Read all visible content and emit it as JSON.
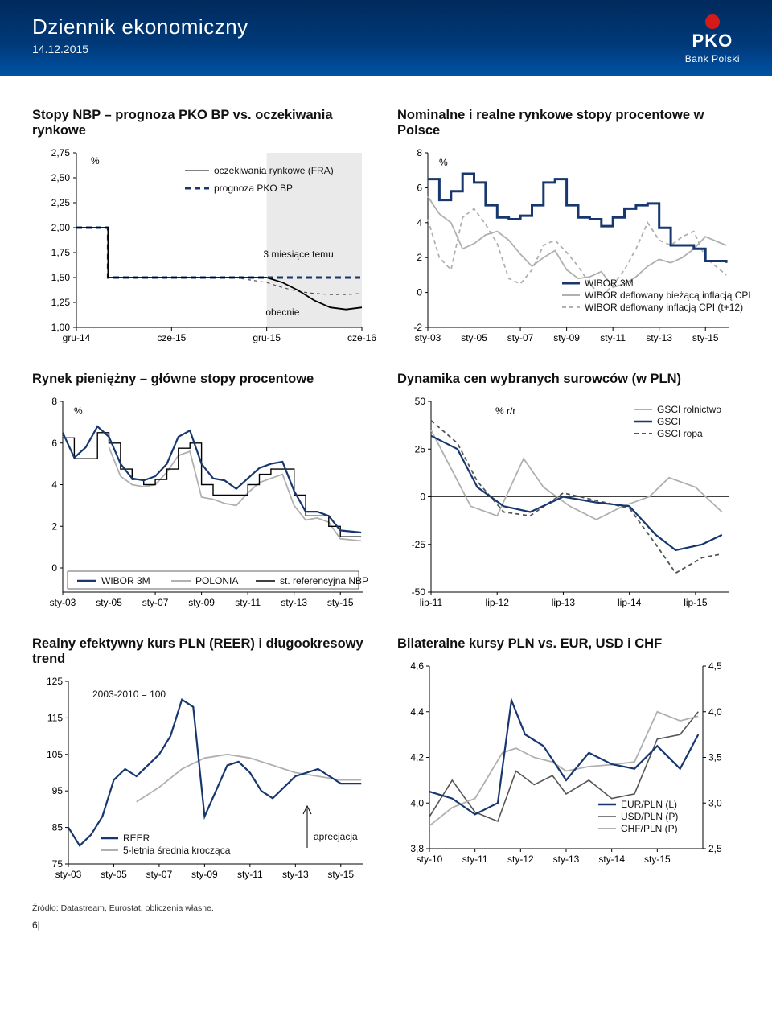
{
  "header": {
    "title": "Dziennik ekonomiczny",
    "date": "14.12.2015",
    "logo_top_color": "#d51a1a",
    "logo_text1": "PKO",
    "logo_text2": "Bank Polski"
  },
  "colors": {
    "blue": "#17376e",
    "gray": "#b0b0b0",
    "darkgray": "#555555",
    "black": "#000000"
  },
  "chart1": {
    "title": "Stopy NBP – prognoza PKO BP vs. oczekiwania rynkowe",
    "unit": "%",
    "legend": {
      "fra": "oczekiwania rynkowe (FRA)",
      "pko": "prognoza PKO BP",
      "ago": "3 miesiące temu",
      "now": "obecnie"
    },
    "yticks": [
      "1,00",
      "1,25",
      "1,50",
      "1,75",
      "2,00",
      "2,25",
      "2,50",
      "2,75"
    ],
    "yvals": [
      1.0,
      1.25,
      1.5,
      1.75,
      2.0,
      2.25,
      2.5,
      2.75
    ],
    "xticks": [
      "gru-14",
      "cze-15",
      "gru-15",
      "cze-16"
    ],
    "xvals": [
      0,
      6,
      12,
      18
    ],
    "fra_now": [
      [
        0,
        2.0
      ],
      [
        2,
        2.0
      ],
      [
        2,
        1.5
      ],
      [
        12,
        1.5
      ],
      [
        13,
        1.45
      ],
      [
        14,
        1.37
      ],
      [
        15,
        1.27
      ],
      [
        16,
        1.2
      ],
      [
        17,
        1.18
      ],
      [
        18,
        1.2
      ]
    ],
    "fra_ago": [
      [
        10,
        1.5
      ],
      [
        12,
        1.45
      ],
      [
        13,
        1.4
      ],
      [
        14,
        1.36
      ],
      [
        15,
        1.34
      ],
      [
        16,
        1.33
      ],
      [
        17,
        1.33
      ],
      [
        18,
        1.34
      ]
    ],
    "pko": [
      [
        0,
        2.0
      ],
      [
        2,
        2.0
      ],
      [
        2,
        1.5
      ],
      [
        18,
        1.5
      ]
    ],
    "shade_x": [
      12,
      18
    ]
  },
  "chart2": {
    "title": "Nominalne i realne rynkowe stopy procentowe w Polsce",
    "unit": "%",
    "yticks": [
      "-2",
      "0",
      "2",
      "4",
      "6",
      "8"
    ],
    "yvals": [
      -2,
      0,
      2,
      4,
      6,
      8
    ],
    "xticks": [
      "sty-03",
      "sty-05",
      "sty-07",
      "sty-09",
      "sty-11",
      "sty-13",
      "sty-15"
    ],
    "xvals": [
      2003,
      2005,
      2007,
      2009,
      2011,
      2013,
      2015
    ],
    "legend": {
      "a": "WIBOR 3M",
      "b": "WIBOR deflowany bieżącą inflacją CPI",
      "c": "WIBOR deflowany inflacją CPI (t+12)"
    },
    "wibor": [
      [
        2003,
        6.5
      ],
      [
        2003.5,
        5.3
      ],
      [
        2004,
        5.8
      ],
      [
        2004.5,
        6.8
      ],
      [
        2005,
        6.3
      ],
      [
        2005.5,
        5.0
      ],
      [
        2006,
        4.3
      ],
      [
        2006.5,
        4.2
      ],
      [
        2007,
        4.4
      ],
      [
        2007.5,
        5.0
      ],
      [
        2008,
        6.3
      ],
      [
        2008.5,
        6.5
      ],
      [
        2009,
        5.0
      ],
      [
        2009.5,
        4.3
      ],
      [
        2010,
        4.2
      ],
      [
        2010.5,
        3.8
      ],
      [
        2011,
        4.3
      ],
      [
        2011.5,
        4.8
      ],
      [
        2012,
        5.0
      ],
      [
        2012.5,
        5.1
      ],
      [
        2013,
        3.7
      ],
      [
        2013.5,
        2.7
      ],
      [
        2014,
        2.7
      ],
      [
        2014.5,
        2.5
      ],
      [
        2015,
        1.8
      ],
      [
        2015.9,
        1.7
      ]
    ],
    "real_cur": [
      [
        2003,
        5.5
      ],
      [
        2003.5,
        4.5
      ],
      [
        2004,
        4.0
      ],
      [
        2004.5,
        2.5
      ],
      [
        2005,
        2.8
      ],
      [
        2005.5,
        3.3
      ],
      [
        2006,
        3.5
      ],
      [
        2006.5,
        3.0
      ],
      [
        2007,
        2.2
      ],
      [
        2007.5,
        1.5
      ],
      [
        2008,
        2.0
      ],
      [
        2008.5,
        2.4
      ],
      [
        2009,
        1.3
      ],
      [
        2009.5,
        0.8
      ],
      [
        2010,
        0.9
      ],
      [
        2010.5,
        1.2
      ],
      [
        2011,
        0.3
      ],
      [
        2011.5,
        0.5
      ],
      [
        2012,
        0.9
      ],
      [
        2012.5,
        1.5
      ],
      [
        2013,
        1.9
      ],
      [
        2013.5,
        1.7
      ],
      [
        2014,
        2.0
      ],
      [
        2014.5,
        2.5
      ],
      [
        2015,
        3.2
      ],
      [
        2015.9,
        2.7
      ]
    ],
    "real_fwd": [
      [
        2003,
        4.2
      ],
      [
        2003.5,
        2.0
      ],
      [
        2004,
        1.3
      ],
      [
        2004.5,
        4.3
      ],
      [
        2005,
        4.8
      ],
      [
        2005.5,
        3.9
      ],
      [
        2006,
        2.8
      ],
      [
        2006.5,
        0.8
      ],
      [
        2007,
        0.5
      ],
      [
        2007.5,
        1.3
      ],
      [
        2008,
        2.7
      ],
      [
        2008.5,
        3.0
      ],
      [
        2009,
        2.3
      ],
      [
        2009.5,
        1.5
      ],
      [
        2010,
        0.5
      ],
      [
        2010.5,
        -0.2
      ],
      [
        2011,
        0.4
      ],
      [
        2011.5,
        1.3
      ],
      [
        2012,
        2.5
      ],
      [
        2012.5,
        4.0
      ],
      [
        2013,
        3.0
      ],
      [
        2013.5,
        2.7
      ],
      [
        2014,
        3.2
      ],
      [
        2014.5,
        3.5
      ],
      [
        2015,
        2.0
      ],
      [
        2015.9,
        1.0
      ]
    ]
  },
  "chart3": {
    "title": "Rynek pieniężny – główne stopy procentowe",
    "unit": "%",
    "yticks": [
      "0",
      "2",
      "4",
      "6",
      "8"
    ],
    "yvals": [
      0,
      2,
      4,
      6,
      8
    ],
    "xticks": [
      "sty-03",
      "sty-05",
      "sty-07",
      "sty-09",
      "sty-11",
      "sty-13",
      "sty-15"
    ],
    "xvals": [
      2003,
      2005,
      2007,
      2009,
      2011,
      2013,
      2015
    ],
    "legend": {
      "a": "WIBOR 3M",
      "b": "POLONIA",
      "c": "st. referencyjna NBP"
    },
    "wibor": [
      [
        2003,
        6.5
      ],
      [
        2003.5,
        5.3
      ],
      [
        2004,
        5.8
      ],
      [
        2004.5,
        6.8
      ],
      [
        2005,
        6.3
      ],
      [
        2005.5,
        5.0
      ],
      [
        2006,
        4.3
      ],
      [
        2006.5,
        4.2
      ],
      [
        2007,
        4.4
      ],
      [
        2007.5,
        5.0
      ],
      [
        2008,
        6.3
      ],
      [
        2008.5,
        6.6
      ],
      [
        2009,
        5.0
      ],
      [
        2009.5,
        4.3
      ],
      [
        2010,
        4.2
      ],
      [
        2010.5,
        3.8
      ],
      [
        2011,
        4.3
      ],
      [
        2011.5,
        4.8
      ],
      [
        2012,
        5.0
      ],
      [
        2012.5,
        5.1
      ],
      [
        2013,
        3.7
      ],
      [
        2013.5,
        2.7
      ],
      [
        2014,
        2.7
      ],
      [
        2014.5,
        2.5
      ],
      [
        2015,
        1.8
      ],
      [
        2015.9,
        1.7
      ]
    ],
    "polonia": [
      [
        2005,
        5.8
      ],
      [
        2005.5,
        4.4
      ],
      [
        2006,
        4.0
      ],
      [
        2006.5,
        3.9
      ],
      [
        2007,
        4.0
      ],
      [
        2007.5,
        4.6
      ],
      [
        2008,
        5.4
      ],
      [
        2008.5,
        5.6
      ],
      [
        2009,
        3.4
      ],
      [
        2009.5,
        3.3
      ],
      [
        2010,
        3.1
      ],
      [
        2010.5,
        3.0
      ],
      [
        2011,
        3.6
      ],
      [
        2011.5,
        4.1
      ],
      [
        2012,
        4.3
      ],
      [
        2012.5,
        4.5
      ],
      [
        2013,
        3.0
      ],
      [
        2013.5,
        2.3
      ],
      [
        2014,
        2.4
      ],
      [
        2014.5,
        2.2
      ],
      [
        2015,
        1.4
      ],
      [
        2015.9,
        1.3
      ]
    ],
    "nbp": [
      [
        2003,
        6.25
      ],
      [
        2003.5,
        5.25
      ],
      [
        2004,
        5.25
      ],
      [
        2004.5,
        6.5
      ],
      [
        2005,
        6.0
      ],
      [
        2005.5,
        4.75
      ],
      [
        2006,
        4.25
      ],
      [
        2006.5,
        4.0
      ],
      [
        2007,
        4.25
      ],
      [
        2007.5,
        4.75
      ],
      [
        2008,
        5.75
      ],
      [
        2008.5,
        6.0
      ],
      [
        2009,
        4.0
      ],
      [
        2009.5,
        3.5
      ],
      [
        2010,
        3.5
      ],
      [
        2010.5,
        3.5
      ],
      [
        2011,
        4.0
      ],
      [
        2011.5,
        4.5
      ],
      [
        2012,
        4.75
      ],
      [
        2012.5,
        4.75
      ],
      [
        2013,
        3.5
      ],
      [
        2013.5,
        2.5
      ],
      [
        2014,
        2.5
      ],
      [
        2014.5,
        2.0
      ],
      [
        2015,
        1.5
      ],
      [
        2015.9,
        1.5
      ]
    ]
  },
  "chart4": {
    "title": "Dynamika cen wybranych surowców (w PLN)",
    "unit": "% r/r",
    "yticks": [
      "-50",
      "-25",
      "0",
      "25",
      "50"
    ],
    "yvals": [
      -50,
      -25,
      0,
      25,
      50
    ],
    "xticks": [
      "lip-11",
      "lip-12",
      "lip-13",
      "lip-14",
      "lip-15"
    ],
    "xvals": [
      2011.5,
      2012.5,
      2013.5,
      2014.5,
      2015.5
    ],
    "legend": {
      "a": "GSCI rolnictwo",
      "b": "GSCI",
      "c": "GSCI ropa"
    },
    "agri": [
      [
        2011.5,
        35
      ],
      [
        2011.8,
        15
      ],
      [
        2012.1,
        -5
      ],
      [
        2012.5,
        -10
      ],
      [
        2012.9,
        20
      ],
      [
        2013.2,
        5
      ],
      [
        2013.6,
        -5
      ],
      [
        2014.0,
        -12
      ],
      [
        2014.4,
        -5
      ],
      [
        2014.8,
        0
      ],
      [
        2015.1,
        10
      ],
      [
        2015.5,
        5
      ],
      [
        2015.9,
        -8
      ]
    ],
    "gsci": [
      [
        2011.5,
        32
      ],
      [
        2011.9,
        25
      ],
      [
        2012.2,
        5
      ],
      [
        2012.6,
        -5
      ],
      [
        2013.0,
        -8
      ],
      [
        2013.5,
        0
      ],
      [
        2014.0,
        -3
      ],
      [
        2014.5,
        -5
      ],
      [
        2014.9,
        -20
      ],
      [
        2015.2,
        -28
      ],
      [
        2015.6,
        -25
      ],
      [
        2015.9,
        -20
      ]
    ],
    "oil": [
      [
        2011.5,
        40
      ],
      [
        2011.9,
        28
      ],
      [
        2012.2,
        8
      ],
      [
        2012.6,
        -8
      ],
      [
        2013.0,
        -10
      ],
      [
        2013.5,
        2
      ],
      [
        2014.0,
        -2
      ],
      [
        2014.5,
        -6
      ],
      [
        2014.9,
        -25
      ],
      [
        2015.2,
        -40
      ],
      [
        2015.6,
        -32
      ],
      [
        2015.9,
        -30
      ]
    ]
  },
  "chart5": {
    "title": "Realny efektywny kurs PLN (REER) i długookresowy trend",
    "note": "2003-2010 = 100",
    "yticks": [
      "75",
      "85",
      "95",
      "105",
      "115",
      "125"
    ],
    "yvals": [
      75,
      85,
      95,
      105,
      115,
      125
    ],
    "xticks": [
      "sty-03",
      "sty-05",
      "sty-07",
      "sty-09",
      "sty-11",
      "sty-13",
      "sty-15"
    ],
    "xvals": [
      2003,
      2005,
      2007,
      2009,
      2011,
      2013,
      2015
    ],
    "legend": {
      "a": "REER",
      "b": "5-letnia średnia krocząca",
      "c": "aprecjacja"
    },
    "reer": [
      [
        2003,
        85
      ],
      [
        2003.5,
        80
      ],
      [
        2004,
        83
      ],
      [
        2004.5,
        88
      ],
      [
        2005,
        98
      ],
      [
        2005.5,
        101
      ],
      [
        2006,
        99
      ],
      [
        2006.5,
        102
      ],
      [
        2007,
        105
      ],
      [
        2007.5,
        110
      ],
      [
        2008,
        120
      ],
      [
        2008.5,
        118
      ],
      [
        2009,
        88
      ],
      [
        2009.5,
        95
      ],
      [
        2010,
        102
      ],
      [
        2010.5,
        103
      ],
      [
        2011,
        100
      ],
      [
        2011.5,
        95
      ],
      [
        2012,
        93
      ],
      [
        2012.5,
        96
      ],
      [
        2013,
        99
      ],
      [
        2013.5,
        100
      ],
      [
        2014,
        101
      ],
      [
        2014.5,
        99
      ],
      [
        2015,
        97
      ],
      [
        2015.9,
        97
      ]
    ],
    "ma5": [
      [
        2006,
        92
      ],
      [
        2007,
        96
      ],
      [
        2008,
        101
      ],
      [
        2009,
        104
      ],
      [
        2010,
        105
      ],
      [
        2011,
        104
      ],
      [
        2012,
        102
      ],
      [
        2013,
        100
      ],
      [
        2014,
        99
      ],
      [
        2015,
        98
      ],
      [
        2015.9,
        98
      ]
    ]
  },
  "chart6": {
    "title": "Bilateralne kursy PLN vs. EUR, USD i CHF",
    "yl_ticks": [
      "3,8",
      "4,0",
      "4,2",
      "4,4",
      "4,6"
    ],
    "yl_vals": [
      3.8,
      4.0,
      4.2,
      4.4,
      4.6
    ],
    "yr_ticks": [
      "2,5",
      "3,0",
      "3,5",
      "4,0",
      "4,5"
    ],
    "yr_vals": [
      2.5,
      3.0,
      3.5,
      4.0,
      4.5
    ],
    "xticks": [
      "sty-10",
      "sty-11",
      "sty-12",
      "sty-13",
      "sty-14",
      "sty-15"
    ],
    "xvals": [
      2010,
      2011,
      2012,
      2013,
      2014,
      2015
    ],
    "legend": {
      "a": "EUR/PLN (L)",
      "b": "USD/PLN (P)",
      "c": "CHF/PLN (P)"
    },
    "eur": [
      [
        2010,
        4.05
      ],
      [
        2010.5,
        4.02
      ],
      [
        2011,
        3.95
      ],
      [
        2011.5,
        4.0
      ],
      [
        2011.8,
        4.45
      ],
      [
        2012.1,
        4.3
      ],
      [
        2012.5,
        4.25
      ],
      [
        2013,
        4.1
      ],
      [
        2013.5,
        4.22
      ],
      [
        2014,
        4.17
      ],
      [
        2014.5,
        4.15
      ],
      [
        2015,
        4.25
      ],
      [
        2015.5,
        4.15
      ],
      [
        2015.9,
        4.3
      ]
    ],
    "usd": [
      [
        2010,
        2.85
      ],
      [
        2010.5,
        3.25
      ],
      [
        2011,
        2.9
      ],
      [
        2011.5,
        2.8
      ],
      [
        2011.9,
        3.35
      ],
      [
        2012.3,
        3.2
      ],
      [
        2012.7,
        3.3
      ],
      [
        2013,
        3.1
      ],
      [
        2013.5,
        3.25
      ],
      [
        2014,
        3.05
      ],
      [
        2014.5,
        3.1
      ],
      [
        2015,
        3.7
      ],
      [
        2015.5,
        3.75
      ],
      [
        2015.9,
        4.0
      ]
    ],
    "chf": [
      [
        2010,
        2.75
      ],
      [
        2010.5,
        2.95
      ],
      [
        2011,
        3.05
      ],
      [
        2011.6,
        3.55
      ],
      [
        2011.9,
        3.6
      ],
      [
        2012.3,
        3.5
      ],
      [
        2012.7,
        3.45
      ],
      [
        2013,
        3.35
      ],
      [
        2013.5,
        3.4
      ],
      [
        2014,
        3.42
      ],
      [
        2014.5,
        3.45
      ],
      [
        2015,
        4.0
      ],
      [
        2015.5,
        3.9
      ],
      [
        2015.9,
        3.95
      ]
    ]
  },
  "footer": {
    "source": "Źródło: Datastream, Eurostat, obliczenia własne.",
    "page": "6|"
  }
}
